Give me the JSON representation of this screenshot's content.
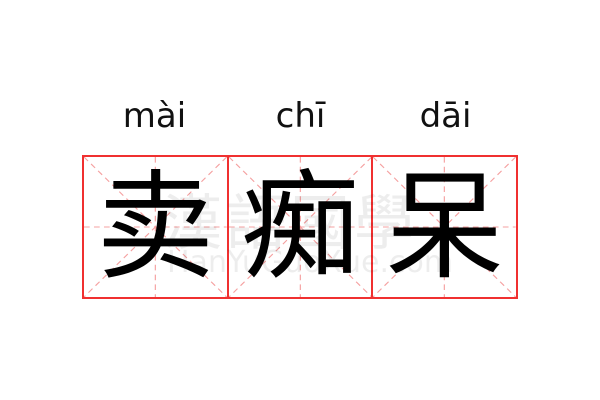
{
  "word": [
    {
      "pinyin": "mài",
      "char": "卖"
    },
    {
      "pinyin": "chī",
      "char": "痴"
    },
    {
      "pinyin": "dāi",
      "char": "呆"
    }
  ],
  "watermark": {
    "chinese": "漢語國學",
    "latin": "HanYuGuoXue.com"
  },
  "colors": {
    "grid_border": "#f03030",
    "guide_lines": "#f5a0a0",
    "text": "#000000"
  }
}
